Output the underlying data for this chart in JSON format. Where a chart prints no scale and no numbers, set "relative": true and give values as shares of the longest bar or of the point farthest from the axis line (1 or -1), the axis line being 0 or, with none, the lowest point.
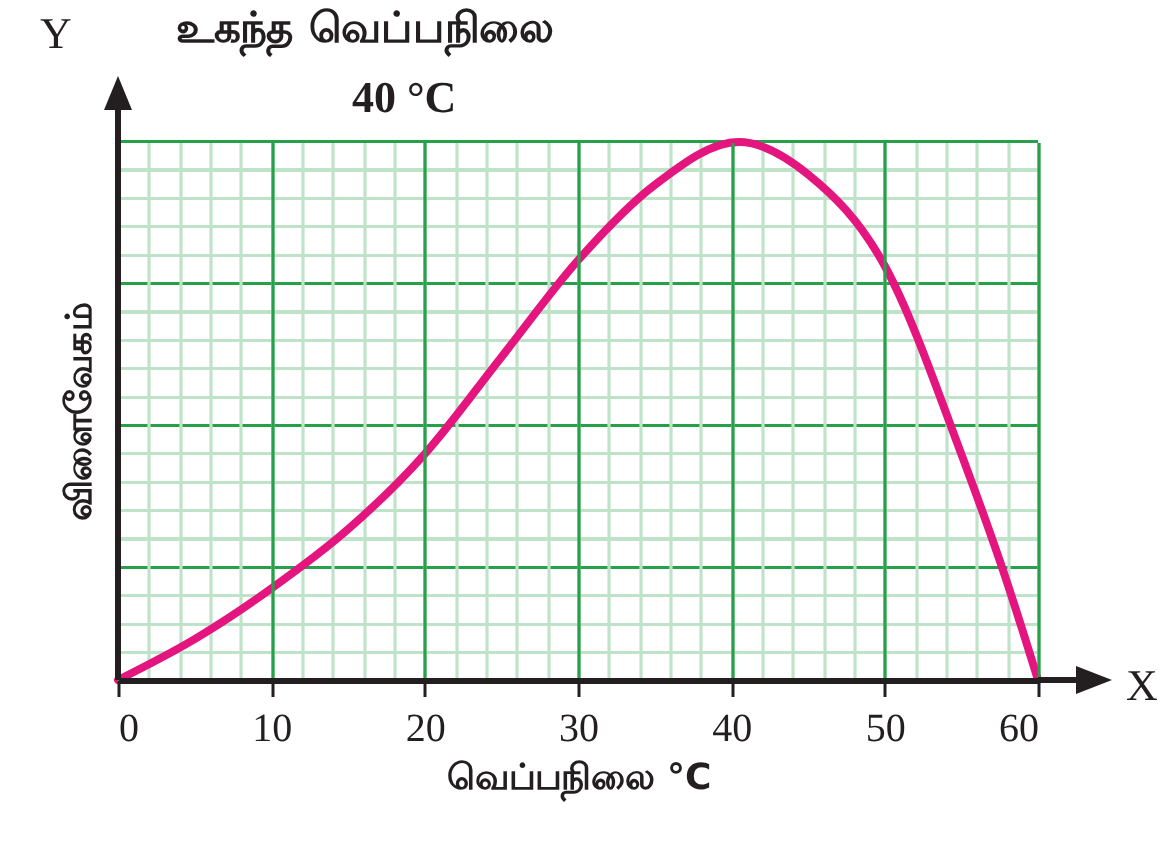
{
  "chart_data": {
    "type": "line",
    "relative": true,
    "xlabel": "வெப்பநிலை °C",
    "ylabel": "விளைவேகம்",
    "annotations": [
      "உகந்த வெப்பநிலை",
      "40 °C",
      "Y",
      "X"
    ],
    "x": [
      0,
      5,
      10,
      15,
      20,
      25,
      30,
      35,
      40.5,
      45,
      50,
      55,
      58,
      60
    ],
    "series": [
      {
        "color": "#e5157f",
        "values": [
          0,
          0.076,
          0.17,
          0.28,
          0.42,
          0.6,
          0.78,
          0.92,
          1,
          0.94,
          0.77,
          0.42,
          0.18,
          0
        ]
      }
    ],
    "xlim": [
      0,
      60
    ],
    "xticks": [
      0,
      10,
      20,
      30,
      40,
      50,
      60
    ],
    "grid": true,
    "marker": "none",
    "line_style": "solid"
  }
}
